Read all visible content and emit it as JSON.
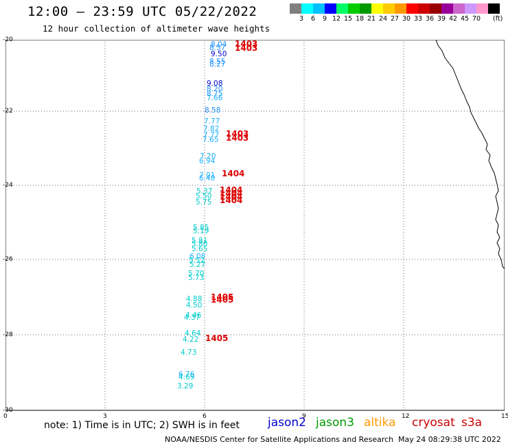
{
  "header": {
    "title": "12:00 — 23:59 UTC 05/22/2022",
    "subtitle": "12 hour collection of altimeter wave heights"
  },
  "colorbar": {
    "colors": [
      "#808080",
      "#00ffff",
      "#00c0ff",
      "#0000ff",
      "#00ff66",
      "#00cc00",
      "#009900",
      "#ffff00",
      "#ffcc00",
      "#ff9900",
      "#ff0000",
      "#cc0000",
      "#990000",
      "#990099",
      "#cc66cc",
      "#cc99ff",
      "#ff99cc",
      "#000000"
    ],
    "labels": [
      "3",
      "6",
      "9",
      "12",
      "15",
      "18",
      "21",
      "24",
      "27",
      "30",
      "33",
      "36",
      "39",
      "42",
      "45",
      "70"
    ],
    "unit": "(ft)"
  },
  "axes": {
    "x_ticks": [
      "0",
      "3",
      "6",
      "9",
      "12",
      "15"
    ],
    "y_ticks": [
      "-20",
      "-22",
      "-24",
      "-26",
      "-28",
      "-30"
    ]
  },
  "observations": [
    {
      "text": "8.04",
      "color": "#1a90ff"
    },
    {
      "text": "8.57",
      "color": "#1a90ff"
    },
    {
      "text": "9.50",
      "color": "#0000cc"
    },
    {
      "text": "8.55",
      "color": "#1a90ff"
    },
    {
      "text": "8.27",
      "color": "#1a90ff"
    },
    {
      "text": "9.08",
      "color": "#0000cc"
    },
    {
      "text": "8.20",
      "color": "#1a90ff"
    },
    {
      "text": "8.75",
      "color": "#1a90ff"
    },
    {
      "text": "7.66",
      "color": "#1ab0ff"
    },
    {
      "text": "8.58",
      "color": "#1a90ff"
    },
    {
      "text": "7.77",
      "color": "#1ab0ff"
    },
    {
      "text": "7.82",
      "color": "#1ab0ff"
    },
    {
      "text": "7.77",
      "color": "#1ab0ff"
    },
    {
      "text": "7.65",
      "color": "#1ab0ff"
    },
    {
      "text": "7.20",
      "color": "#1ab0ff"
    },
    {
      "text": "6.94",
      "color": "#1ab0ff"
    },
    {
      "text": "7.01",
      "color": "#1ab0ff"
    },
    {
      "text": "6.40",
      "color": "#1ab0ff"
    },
    {
      "text": "5.37",
      "color": "#00cccc"
    },
    {
      "text": "5.50",
      "color": "#00cccc"
    },
    {
      "text": "5.75",
      "color": "#00cccc"
    },
    {
      "text": "5.85",
      "color": "#00cccc"
    },
    {
      "text": "5.19",
      "color": "#00cccc"
    },
    {
      "text": "5.81",
      "color": "#00cccc"
    },
    {
      "text": "5.80",
      "color": "#00cccc"
    },
    {
      "text": "5.65",
      "color": "#00cccc"
    },
    {
      "text": "6.08",
      "color": "#1ab0ff"
    },
    {
      "text": "5.52",
      "color": "#00cccc"
    },
    {
      "text": "5.27",
      "color": "#00cccc"
    },
    {
      "text": "5.70",
      "color": "#00cccc"
    },
    {
      "text": "5.73",
      "color": "#00cccc"
    },
    {
      "text": "4.88",
      "color": "#00cccc"
    },
    {
      "text": "4.50",
      "color": "#00cccc"
    },
    {
      "text": "4.46",
      "color": "#00cccc"
    },
    {
      "text": "4.37",
      "color": "#00cccc"
    },
    {
      "text": "4.64",
      "color": "#00cccc"
    },
    {
      "text": "4.22",
      "color": "#00cccc"
    },
    {
      "text": "4.73",
      "color": "#00cccc"
    },
    {
      "text": "6.76",
      "color": "#1ab0ff"
    },
    {
      "text": "4.69",
      "color": "#00cccc"
    },
    {
      "text": "3.29",
      "color": "#00cccc"
    }
  ],
  "passes": [
    {
      "text": "1403",
      "color": "#dd0000"
    },
    {
      "text": "1403",
      "color": "#dd0000"
    },
    {
      "text": "1403",
      "color": "#dd0000"
    },
    {
      "text": "1403",
      "color": "#dd0000"
    },
    {
      "text": "1404",
      "color": "#dd0000"
    },
    {
      "text": "1404",
      "color": "#dd0000"
    },
    {
      "text": "1404",
      "color": "#dd0000"
    },
    {
      "text": "1404",
      "color": "#dd0000"
    },
    {
      "text": "1404",
      "color": "#dd0000"
    },
    {
      "text": "1405",
      "color": "#dd0000"
    },
    {
      "text": "1405",
      "color": "#dd0000"
    },
    {
      "text": "1405",
      "color": "#dd0000"
    }
  ],
  "footer": {
    "note": "note: 1) Time is in UTC; 2) SWH is in feet",
    "satellites": [
      {
        "name": "jason2",
        "color": "#0000cc"
      },
      {
        "name": "jason3",
        "color": "#009900"
      },
      {
        "name": "altika",
        "color": "#ff9900"
      },
      {
        "name": "cryosat",
        "color": "#cc0000"
      },
      {
        "name": "s3a",
        "color": "#cc0000"
      }
    ],
    "credit": "NOAA/NESDIS Center for Satellite Applications and Research",
    "generated": "May 24 08:29:38 UTC 2022"
  }
}
